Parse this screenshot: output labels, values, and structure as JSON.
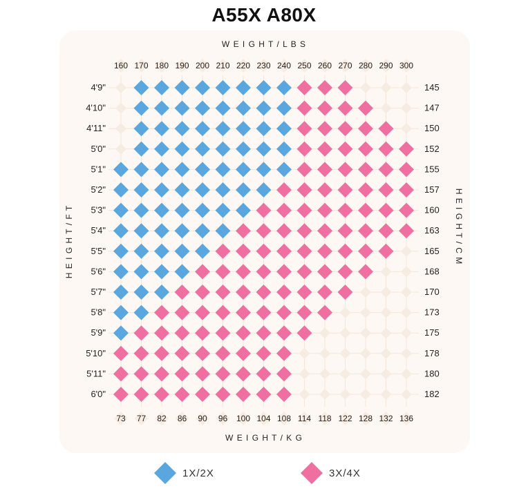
{
  "title": "A55X A80X",
  "chart_data": {
    "type": "heatmap",
    "title": "A55X A80X",
    "top_axis_label": "W E I G H T / L B S",
    "bottom_axis_label": "W E I G H T / K G",
    "left_axis_label": "H E I G H T / F T",
    "right_axis_label": "H E I G H T / C M",
    "weight_lbs": [
      "160",
      "170",
      "180",
      "190",
      "200",
      "210",
      "220",
      "230",
      "240",
      "250",
      "260",
      "270",
      "280",
      "290",
      "300"
    ],
    "weight_kg": [
      "73",
      "77",
      "82",
      "86",
      "90",
      "96",
      "100",
      "104",
      "108",
      "114",
      "118",
      "122",
      "128",
      "132",
      "136"
    ],
    "height_ft": [
      "4'9\"",
      "4'10\"",
      "4'11\"",
      "5'0\"",
      "5'1\"",
      "5'2\"",
      "5'3\"",
      "5'4\"",
      "5'5\"",
      "5'6\"",
      "5'7\"",
      "5'8\"",
      "5'9\"",
      "5'10\"",
      "5'11\"",
      "6'0\""
    ],
    "height_cm": [
      "145",
      "147",
      "150",
      "152",
      "155",
      "157",
      "160",
      "163",
      "165",
      "168",
      "170",
      "173",
      "175",
      "178",
      "180",
      "182"
    ],
    "legend": [
      {
        "code": 1,
        "label": "1X/2X",
        "color": "#5aa7e0"
      },
      {
        "code": 2,
        "label": "3X/4X",
        "color": "#ef6fa0"
      }
    ],
    "empty_color": "#f7ece1",
    "grid": [
      [
        0,
        1,
        1,
        1,
        1,
        1,
        1,
        1,
        1,
        2,
        2,
        2,
        0,
        0,
        0
      ],
      [
        0,
        1,
        1,
        1,
        1,
        1,
        1,
        1,
        1,
        2,
        2,
        2,
        2,
        0,
        0
      ],
      [
        0,
        1,
        1,
        1,
        1,
        1,
        1,
        1,
        1,
        2,
        2,
        2,
        2,
        2,
        0
      ],
      [
        0,
        1,
        1,
        1,
        1,
        1,
        1,
        1,
        1,
        2,
        2,
        2,
        2,
        2,
        2
      ],
      [
        1,
        1,
        1,
        1,
        1,
        1,
        1,
        1,
        1,
        2,
        2,
        2,
        2,
        2,
        2
      ],
      [
        1,
        1,
        1,
        1,
        1,
        1,
        1,
        1,
        2,
        2,
        2,
        2,
        2,
        2,
        2
      ],
      [
        1,
        1,
        1,
        1,
        1,
        1,
        1,
        2,
        2,
        2,
        2,
        2,
        2,
        2,
        2
      ],
      [
        1,
        1,
        1,
        1,
        1,
        1,
        2,
        2,
        2,
        2,
        2,
        2,
        2,
        2,
        2
      ],
      [
        1,
        1,
        1,
        1,
        1,
        2,
        2,
        2,
        2,
        2,
        2,
        2,
        2,
        2,
        0
      ],
      [
        1,
        1,
        1,
        1,
        2,
        2,
        2,
        2,
        2,
        2,
        2,
        2,
        2,
        0,
        0
      ],
      [
        1,
        1,
        1,
        2,
        2,
        2,
        2,
        2,
        2,
        2,
        2,
        2,
        0,
        0,
        0
      ],
      [
        1,
        1,
        2,
        2,
        2,
        2,
        2,
        2,
        2,
        2,
        2,
        0,
        0,
        0,
        0
      ],
      [
        1,
        2,
        2,
        2,
        2,
        2,
        2,
        2,
        2,
        2,
        0,
        0,
        0,
        0,
        0
      ],
      [
        2,
        2,
        2,
        2,
        2,
        2,
        2,
        2,
        2,
        0,
        0,
        0,
        0,
        0,
        0
      ],
      [
        2,
        2,
        2,
        2,
        2,
        2,
        2,
        2,
        2,
        0,
        0,
        0,
        0,
        0,
        0
      ],
      [
        2,
        2,
        2,
        2,
        2,
        2,
        2,
        2,
        2,
        0,
        0,
        0,
        0,
        0,
        0
      ]
    ]
  }
}
